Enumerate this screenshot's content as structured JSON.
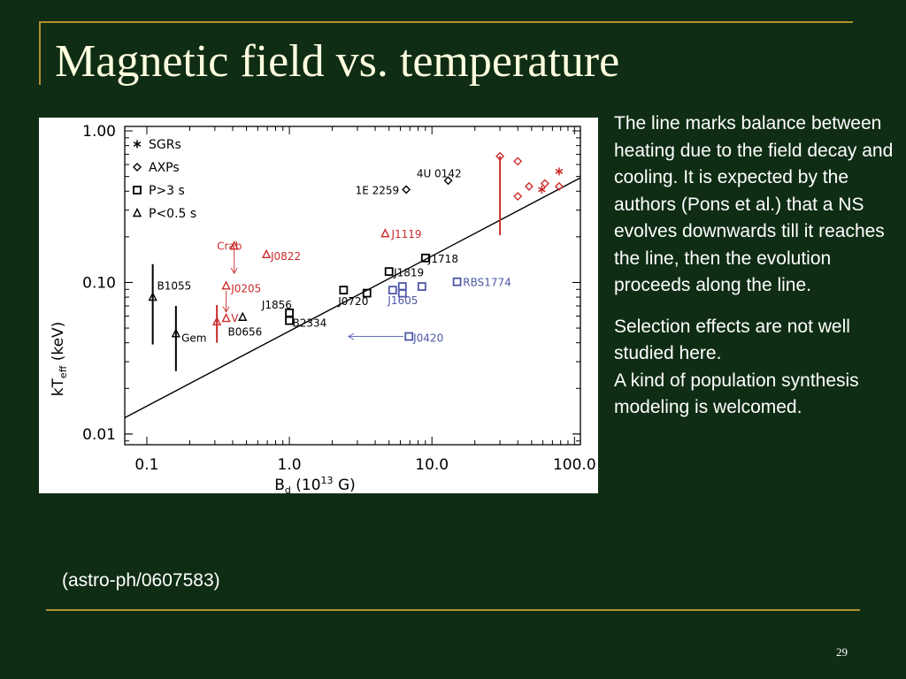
{
  "slide": {
    "title": "Magnetic field vs. temperature",
    "paragraph1": "The line marks balance between heating due to the field decay and cooling. It is expected by the authors (Pons et al.) that a NS evolves downwards till it reaches the line, then the evolution proceeds along the line.",
    "paragraph2": "Selection effects are not well studied here.",
    "paragraph3": "A kind of population synthesis modeling is welcomed.",
    "reference": "(astro-ph/0607583)",
    "page_number": "29"
  },
  "colors": {
    "background": "#0f2d14",
    "rule": "#b0902e",
    "title": "#fffde0",
    "black": "#000000",
    "red": "#cc2a2a",
    "blue": "#4e58a8"
  },
  "chart_data": {
    "type": "scatter",
    "xlabel": "B_d (10^13 G)",
    "ylabel": "kT_eff (keV)",
    "x_scale": "log",
    "y_scale": "log",
    "xlim": [
      0.07,
      110
    ],
    "ylim": [
      0.0085,
      1.07
    ],
    "x_ticks": [
      "0.1",
      "1.0",
      "10.0",
      "100.0"
    ],
    "x_tick_values": [
      0.1,
      1,
      10,
      100
    ],
    "y_ticks": [
      "0.01",
      "0.10",
      "1.00"
    ],
    "y_tick_values": [
      0.01,
      0.1,
      1
    ],
    "legend": [
      {
        "label": "SGRs",
        "marker": "star"
      },
      {
        "label": "AXPs",
        "marker": "diamond"
      },
      {
        "label": "P>3 s",
        "marker": "square"
      },
      {
        "label": "P<0.5 s",
        "marker": "triangle"
      }
    ],
    "balance_line": [
      [
        0.07,
        0.0128
      ],
      [
        110,
        0.49
      ]
    ],
    "points": [
      {
        "marker": "star",
        "color": "red",
        "x": 59,
        "y": 0.41
      },
      {
        "marker": "star",
        "color": "red",
        "x": 78,
        "y": 0.54
      },
      {
        "marker": "diamond",
        "color": "black",
        "x": 6.6,
        "y": 0.41
      },
      {
        "marker": "diamond",
        "color": "black",
        "x": 13,
        "y": 0.47
      },
      {
        "marker": "diamond",
        "color": "red",
        "x": 30,
        "y": 0.68
      },
      {
        "marker": "diamond",
        "color": "red",
        "x": 40,
        "y": 0.63
      },
      {
        "marker": "diamond",
        "color": "red",
        "x": 40,
        "y": 0.37
      },
      {
        "marker": "diamond",
        "color": "red",
        "x": 48,
        "y": 0.43
      },
      {
        "marker": "diamond",
        "color": "red",
        "x": 62,
        "y": 0.45
      },
      {
        "marker": "diamond",
        "color": "red",
        "x": 78,
        "y": 0.43
      },
      {
        "marker": "square",
        "color": "black",
        "x": 9,
        "y": 0.145
      },
      {
        "marker": "square",
        "color": "black",
        "x": 5,
        "y": 0.118
      },
      {
        "marker": "square",
        "color": "black",
        "x": 2.4,
        "y": 0.089
      },
      {
        "marker": "square",
        "color": "black",
        "x": 3.5,
        "y": 0.085
      },
      {
        "marker": "square",
        "color": "black",
        "x": 1,
        "y": 0.063
      },
      {
        "marker": "square",
        "color": "black",
        "x": 1,
        "y": 0.056
      },
      {
        "marker": "square",
        "color": "blue",
        "x": 15,
        "y": 0.101
      },
      {
        "marker": "square",
        "color": "blue",
        "x": 5.3,
        "y": 0.089
      },
      {
        "marker": "square",
        "color": "blue",
        "x": 6.2,
        "y": 0.094
      },
      {
        "marker": "square",
        "color": "blue",
        "x": 8.5,
        "y": 0.094
      },
      {
        "marker": "square",
        "color": "blue",
        "x": 6.2,
        "y": 0.085
      },
      {
        "marker": "square",
        "color": "blue",
        "x": 6.9,
        "y": 0.044
      },
      {
        "marker": "triangle",
        "color": "black",
        "x": 0.11,
        "y": 0.08
      },
      {
        "marker": "triangle",
        "color": "black",
        "x": 0.16,
        "y": 0.046
      },
      {
        "marker": "triangle",
        "color": "black",
        "x": 0.47,
        "y": 0.059
      },
      {
        "marker": "triangle",
        "color": "red",
        "x": 0.41,
        "y": 0.174
      },
      {
        "marker": "triangle",
        "color": "red",
        "x": 0.69,
        "y": 0.153
      },
      {
        "marker": "triangle",
        "color": "red",
        "x": 0.36,
        "y": 0.095
      },
      {
        "marker": "triangle",
        "color": "red",
        "x": 0.36,
        "y": 0.058
      },
      {
        "marker": "triangle",
        "color": "red",
        "x": 0.31,
        "y": 0.055
      },
      {
        "marker": "triangle",
        "color": "red",
        "x": 4.7,
        "y": 0.21
      }
    ],
    "error_bars": [
      {
        "color": "black",
        "x": 0.11,
        "y1": 0.039,
        "y2": 0.132
      },
      {
        "color": "black",
        "x": 0.16,
        "y1": 0.026,
        "y2": 0.07
      },
      {
        "color": "red",
        "x": 0.31,
        "y1": 0.04,
        "y2": 0.071
      },
      {
        "color": "red",
        "x": 30,
        "y1": 0.205,
        "y2": 0.68
      }
    ],
    "arrows": [
      {
        "color": "red",
        "x": 0.41,
        "y1": 0.165,
        "y2": 0.115
      },
      {
        "color": "red",
        "x": 0.36,
        "y1": 0.088,
        "y2": 0.064
      },
      {
        "color": "blue",
        "x1": 6.3,
        "x2": 2.6,
        "y": 0.044
      }
    ],
    "labels": [
      {
        "text": "4U 0142",
        "color": "black",
        "x": 7.8,
        "y": 0.52
      },
      {
        "text": "1E 2259",
        "color": "black",
        "x": 2.9,
        "y": 0.405
      },
      {
        "text": "J1119",
        "color": "red",
        "x": 5.2,
        "y": 0.208
      },
      {
        "text": "Crab",
        "color": "red",
        "x": 0.31,
        "y": 0.173
      },
      {
        "text": "J0822",
        "color": "red",
        "x": 0.74,
        "y": 0.149
      },
      {
        "text": "J1718",
        "color": "black",
        "x": 9.4,
        "y": 0.143
      },
      {
        "text": "J1819",
        "color": "black",
        "x": 5.4,
        "y": 0.116
      },
      {
        "text": "RBS1774",
        "color": "blue",
        "x": 16.5,
        "y": 0.1
      },
      {
        "text": "B1055",
        "color": "black",
        "x": 0.118,
        "y": 0.095
      },
      {
        "text": "J0205",
        "color": "red",
        "x": 0.39,
        "y": 0.091
      },
      {
        "text": "J1856",
        "color": "black",
        "x": 0.64,
        "y": 0.071
      },
      {
        "text": "J0720",
        "color": "black",
        "x": 2.2,
        "y": 0.075
      },
      {
        "text": "J1605",
        "color": "blue",
        "x": 4.9,
        "y": 0.076
      },
      {
        "text": "V",
        "color": "red",
        "x": 0.39,
        "y": 0.058
      },
      {
        "text": "B2334",
        "color": "black",
        "x": 1.05,
        "y": 0.054
      },
      {
        "text": "B0656",
        "color": "black",
        "x": 0.37,
        "y": 0.047
      },
      {
        "text": "Gem",
        "color": "black",
        "x": 0.175,
        "y": 0.043
      },
      {
        "text": "J0420",
        "color": "blue",
        "x": 7.4,
        "y": 0.043
      }
    ]
  }
}
